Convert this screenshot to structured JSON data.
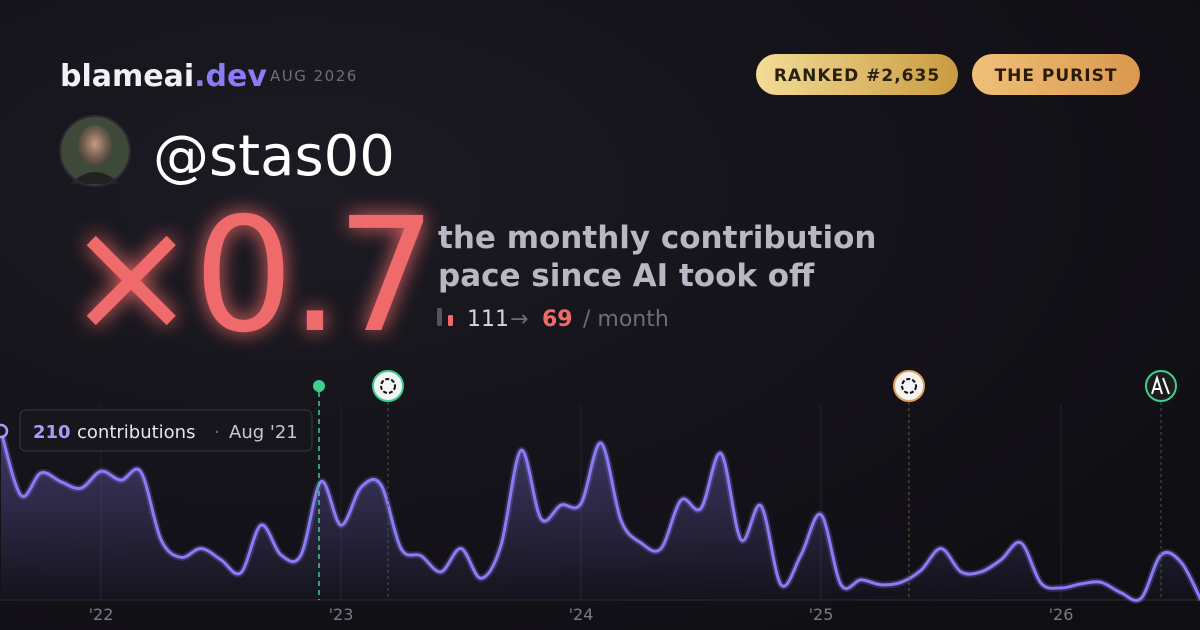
{
  "brand": {
    "name": "blameai",
    "tld": ".dev",
    "date": "AUG 2026"
  },
  "badges": [
    "RANKED #2,635",
    "THE PURIST"
  ],
  "profile": {
    "handle": "@stas00"
  },
  "headline": {
    "multiplier": "×0.7",
    "description": [
      "the monthly contribution",
      "pace since AI took off"
    ],
    "before": 111,
    "arrow": "→",
    "after": 69,
    "unit": "/ month"
  },
  "chart_data": {
    "type": "line",
    "categories": [
      null,
      null,
      null,
      null,
      null,
      "'22",
      null,
      null,
      null,
      null,
      null,
      null,
      null,
      null,
      null,
      null,
      null,
      "'23",
      null,
      null,
      null,
      null,
      null,
      null,
      null,
      null,
      null,
      null,
      null,
      "'24",
      null,
      null,
      null,
      null,
      null,
      null,
      null,
      null,
      null,
      null,
      null,
      "'25",
      null,
      null,
      null,
      null,
      null,
      null,
      null,
      null,
      null,
      null,
      null,
      "'26",
      null,
      null,
      null,
      null,
      null,
      null,
      null
    ],
    "series": [
      {
        "name": "contributions",
        "color": "#8b7cf6",
        "values": [
          210,
          130,
          158,
          147,
          139,
          160,
          149,
          159,
          75,
          53,
          64,
          50,
          34,
          93,
          56,
          56,
          147,
          93,
          140,
          143,
          64,
          55,
          35,
          64,
          27,
          68,
          186,
          101,
          118,
          120,
          195,
          99,
          71,
          64,
          124,
          114,
          182,
          75,
          117,
          19,
          56,
          106,
          19,
          25,
          19,
          22,
          37,
          64,
          35,
          35,
          50,
          71,
          21,
          15,
          20,
          22,
          9,
          2,
          56,
          47,
          0
        ]
      }
    ],
    "ylim": [
      0,
      210
    ],
    "tooltip": {
      "separator": "·",
      "date": "Aug '21"
    }
  }
}
